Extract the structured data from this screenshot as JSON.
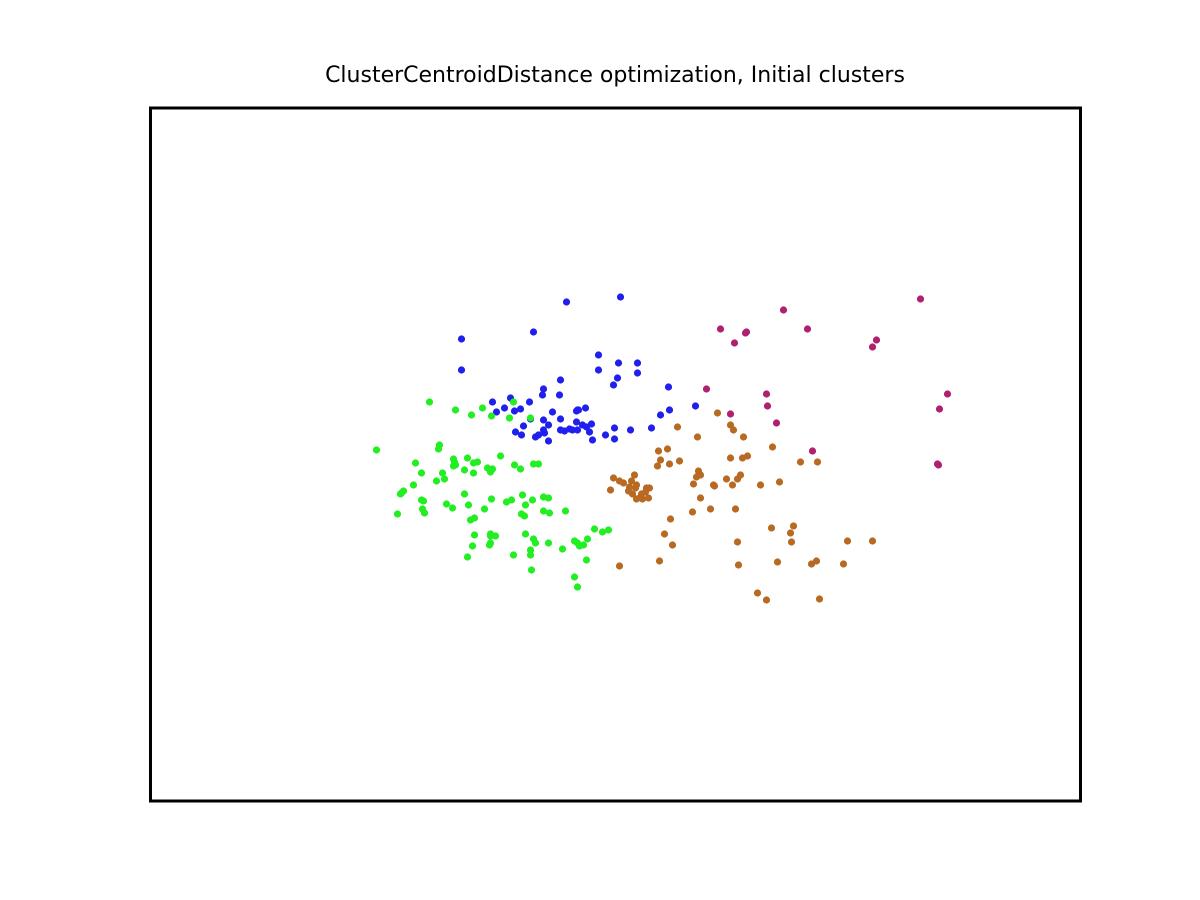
{
  "chart_data": {
    "type": "scatter",
    "title": "ClusterCentroidDistance optimization, Initial clusters",
    "xlabel": "",
    "ylabel": "",
    "axes_ticks_visible": false,
    "grid": false,
    "legend": "none",
    "xlim": [
      0,
      930
    ],
    "ylim": [
      0,
      693
    ],
    "colors": {
      "cluster_blue": "#2020ee",
      "cluster_green": "#22ee22",
      "cluster_orange": "#b86a22",
      "cluster_magenta": "#b02070"
    },
    "series": [
      {
        "color_key": "cluster_blue",
        "points": [
          [
            416,
            499
          ],
          [
            470,
            504
          ],
          [
            383,
            469
          ],
          [
            311,
            462
          ],
          [
            311,
            431
          ],
          [
            448,
            446
          ],
          [
            448,
            431
          ],
          [
            468,
            438
          ],
          [
            487,
            438
          ],
          [
            487,
            428
          ],
          [
            467,
            423
          ],
          [
            463,
            416
          ],
          [
            410,
            421
          ],
          [
            393,
            412
          ],
          [
            409,
            406
          ],
          [
            392,
            406
          ],
          [
            379,
            399
          ],
          [
            360,
            403
          ],
          [
            364,
            390
          ],
          [
            370,
            392
          ],
          [
            342,
            399
          ],
          [
            346,
            389
          ],
          [
            354,
            393
          ],
          [
            402,
            389
          ],
          [
            428,
            391
          ],
          [
            426,
            390
          ],
          [
            380,
            382
          ],
          [
            373,
            375
          ],
          [
            441,
            377
          ],
          [
            426,
            379
          ],
          [
            410,
            382
          ],
          [
            393,
            381
          ],
          [
            398,
            376
          ],
          [
            393,
            371
          ],
          [
            394,
            368
          ],
          [
            410,
            371
          ],
          [
            419,
            372
          ],
          [
            422,
            371
          ],
          [
            385,
            364
          ],
          [
            365,
            369
          ],
          [
            371,
            366
          ],
          [
            388,
            366
          ],
          [
            414,
            370
          ],
          [
            427,
            371
          ],
          [
            439,
            369
          ],
          [
            436,
            374
          ],
          [
            398,
            360
          ],
          [
            442,
            361
          ],
          [
            464,
            362
          ],
          [
            455,
            366
          ],
          [
            464,
            373
          ],
          [
            480,
            371
          ],
          [
            501,
            373
          ],
          [
            432,
            376
          ],
          [
            510,
            386
          ],
          [
            519,
            391
          ],
          [
            545,
            395
          ],
          [
            427,
            391
          ],
          [
            435,
            393
          ],
          [
            518,
            414
          ]
        ]
      },
      {
        "color_key": "cluster_green",
        "points": [
          [
            279,
            399
          ],
          [
            305,
            391
          ],
          [
            321,
            386
          ],
          [
            332,
            393
          ],
          [
            363,
            399
          ],
          [
            341,
            385
          ],
          [
            359,
            383
          ],
          [
            380,
            383
          ],
          [
            226,
            351
          ],
          [
            265,
            338
          ],
          [
            288,
            352
          ],
          [
            289,
            356
          ],
          [
            305,
            336
          ],
          [
            304,
            339
          ],
          [
            314,
            331
          ],
          [
            323,
            338
          ],
          [
            327,
            339
          ],
          [
            337,
            333
          ],
          [
            350,
            345
          ],
          [
            364,
            336
          ],
          [
            303,
            342
          ],
          [
            317,
            343
          ],
          [
            342,
            332
          ],
          [
            340,
            329
          ],
          [
            370,
            332
          ],
          [
            383,
            337
          ],
          [
            388,
            337
          ],
          [
            271,
            328
          ],
          [
            286,
            320
          ],
          [
            294,
            322
          ],
          [
            250,
            307
          ],
          [
            302,
            293
          ],
          [
            334,
            292
          ],
          [
            361,
            301
          ],
          [
            314,
            307
          ],
          [
            303,
            335
          ],
          [
            323,
            328
          ],
          [
            263,
            316
          ],
          [
            292,
            328
          ],
          [
            273,
            300
          ],
          [
            272,
            292
          ],
          [
            274,
            288
          ],
          [
            253,
            310
          ],
          [
            251,
            308
          ],
          [
            271,
            301
          ],
          [
            318,
            296
          ],
          [
            320,
            281
          ],
          [
            324,
            283
          ],
          [
            372,
            306
          ],
          [
            341,
            302
          ],
          [
            356,
            299
          ],
          [
            375,
            296
          ],
          [
            382,
            301
          ],
          [
            393,
            304
          ],
          [
            398,
            303
          ],
          [
            393,
            290
          ],
          [
            399,
            288
          ],
          [
            371,
            287
          ],
          [
            374,
            285
          ],
          [
            424,
            260
          ],
          [
            436,
            241
          ],
          [
            437,
            262
          ],
          [
            433,
            256
          ],
          [
            429,
            255
          ],
          [
            427,
            258
          ],
          [
            324,
            266
          ],
          [
            340,
            267
          ],
          [
            375,
            267
          ],
          [
            383,
            262
          ],
          [
            398,
            258
          ],
          [
            412,
            252
          ],
          [
            452,
            269
          ],
          [
            458,
            271
          ],
          [
            340,
            258
          ],
          [
            385,
            258
          ],
          [
            363,
            246
          ],
          [
            380,
            246
          ],
          [
            322,
            255
          ],
          [
            339,
            256
          ],
          [
            444,
            272
          ],
          [
            381,
            231
          ],
          [
            427,
            214
          ],
          [
            340,
            265
          ],
          [
            415,
            290
          ],
          [
            317,
            244
          ],
          [
            345,
            265
          ],
          [
            380,
            251
          ],
          [
            296,
            297
          ],
          [
            424,
            224
          ],
          [
            247,
            287
          ]
        ]
      },
      {
        "color_key": "cluster_orange",
        "points": [
          [
            567,
            388
          ],
          [
            527,
            374
          ],
          [
            547,
            364
          ],
          [
            580,
            376
          ],
          [
            583,
            371
          ],
          [
            593,
            364
          ],
          [
            580,
            343
          ],
          [
            592,
            343
          ],
          [
            597,
            345
          ],
          [
            622,
            354
          ],
          [
            650,
            339
          ],
          [
            667,
            339
          ],
          [
            590,
            326
          ],
          [
            564,
            315
          ],
          [
            546,
            324
          ],
          [
            529,
            340
          ],
          [
            548,
            330
          ],
          [
            563,
            316
          ],
          [
            576,
            322
          ],
          [
            587,
            322
          ],
          [
            543,
            317
          ],
          [
            550,
            326
          ],
          [
            582,
            316
          ],
          [
            610,
            316
          ],
          [
            629,
            319
          ],
          [
            508,
            350
          ],
          [
            510,
            341
          ],
          [
            507,
            335
          ],
          [
            519,
            337
          ],
          [
            517,
            352
          ],
          [
            486,
            316
          ],
          [
            491,
            307
          ],
          [
            486,
            302
          ],
          [
            485,
            313
          ],
          [
            492,
            302
          ],
          [
            478,
            310
          ],
          [
            495,
            309
          ],
          [
            498,
            303
          ],
          [
            490,
            304
          ],
          [
            481,
            320
          ],
          [
            484,
            326
          ],
          [
            496,
            313
          ],
          [
            460,
            311
          ],
          [
            463,
            323
          ],
          [
            469,
            320
          ],
          [
            473,
            318
          ],
          [
            479,
            314
          ],
          [
            482,
            307
          ],
          [
            499,
            313
          ],
          [
            520,
            282
          ],
          [
            542,
            289
          ],
          [
            560,
            292
          ],
          [
            585,
            292
          ],
          [
            550,
            303
          ],
          [
            621,
            273
          ],
          [
            641,
            259
          ],
          [
            661,
            237
          ],
          [
            587,
            259
          ],
          [
            588,
            236
          ],
          [
            627,
            239
          ],
          [
            693,
            237
          ],
          [
            697,
            260
          ],
          [
            722,
            260
          ],
          [
            607,
            208
          ],
          [
            616,
            201
          ],
          [
            669,
            202
          ],
          [
            666,
            240
          ],
          [
            509,
            240
          ],
          [
            469,
            235
          ],
          [
            643,
            275
          ],
          [
            640,
            268
          ],
          [
            514,
            267
          ],
          [
            522,
            256
          ]
        ]
      },
      {
        "color_key": "cluster_magenta",
        "points": [
          [
            770,
            502
          ],
          [
            633,
            491
          ],
          [
            570,
            472
          ],
          [
            595,
            468
          ],
          [
            657,
            472
          ],
          [
            584,
            458
          ],
          [
            596,
            469
          ],
          [
            726,
            461
          ],
          [
            722,
            454
          ],
          [
            556,
            412
          ],
          [
            580,
            387
          ],
          [
            616,
            407
          ],
          [
            617,
            395
          ],
          [
            626,
            378
          ],
          [
            662,
            350
          ],
          [
            788,
            336
          ],
          [
            797,
            407
          ],
          [
            789,
            392
          ],
          [
            787,
            337
          ]
        ]
      }
    ]
  }
}
